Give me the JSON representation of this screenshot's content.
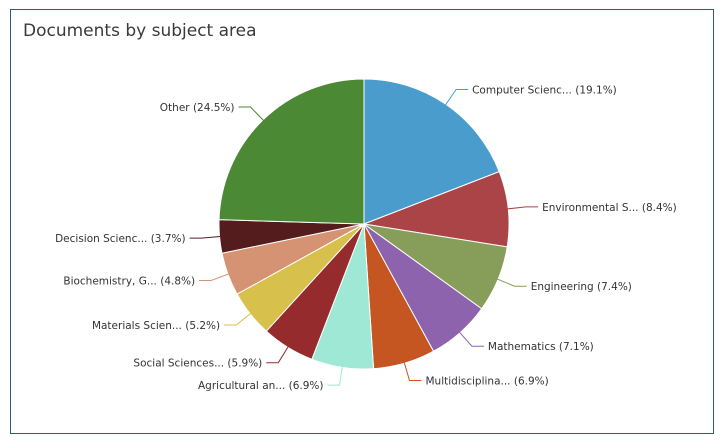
{
  "card": {
    "title": "Documents by subject area"
  },
  "chart_data": {
    "type": "pie",
    "title": "Documents by subject area",
    "slices": [
      {
        "label": "Computer Scienc... (19.1%)",
        "name": "Computer Science",
        "value": 19.1,
        "color": "#4a9ccd"
      },
      {
        "label": "Environmental S... (8.4%)",
        "name": "Environmental Science",
        "value": 8.4,
        "color": "#ab4447"
      },
      {
        "label": "Engineering (7.4%)",
        "name": "Engineering",
        "value": 7.4,
        "color": "#879d5a"
      },
      {
        "label": "Mathematics (7.1%)",
        "name": "Mathematics",
        "value": 7.1,
        "color": "#8e63ad"
      },
      {
        "label": "Multidisciplina... (6.9%)",
        "name": "Multidisciplinary",
        "value": 6.9,
        "color": "#c55622"
      },
      {
        "label": "Agricultural an... (6.9%)",
        "name": "Agricultural and Biological Sciences",
        "value": 6.9,
        "color": "#9ee8d5"
      },
      {
        "label": "Social Sciences... (5.9%)",
        "name": "Social Sciences",
        "value": 5.9,
        "color": "#962b2e"
      },
      {
        "label": "Materials Scien... (5.2%)",
        "name": "Materials Science",
        "value": 5.2,
        "color": "#d7c04b"
      },
      {
        "label": "Biochemistry, G... (4.8%)",
        "name": "Biochemistry, Genetics",
        "value": 4.8,
        "color": "#d69373"
      },
      {
        "label": "Decision Scienc... (3.7%)",
        "name": "Decision Sciences",
        "value": 3.7,
        "color": "#551c1d"
      },
      {
        "label": "Other (24.5%)",
        "name": "Other",
        "value": 24.5,
        "color": "#4c8935"
      }
    ]
  }
}
